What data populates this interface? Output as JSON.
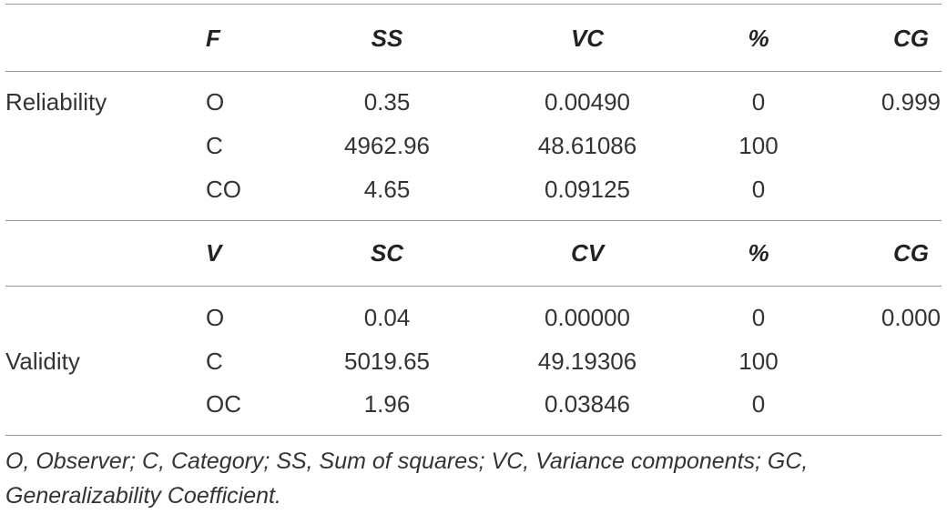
{
  "header1": [
    "F",
    "SS",
    "VC",
    "%",
    "CG"
  ],
  "reliability": {
    "label": "Reliability",
    "rows": [
      {
        "source": "O",
        "ss": "0.35",
        "vc": "0.00490",
        "pct": "0",
        "cg": "0.999"
      },
      {
        "source": "C",
        "ss": "4962.96",
        "vc": "48.61086",
        "pct": "100",
        "cg": ""
      },
      {
        "source": "CO",
        "ss": "4.65",
        "vc": "0.09125",
        "pct": "0",
        "cg": ""
      }
    ]
  },
  "header2": [
    "V",
    "SC",
    "CV",
    "%",
    "CG"
  ],
  "validity": {
    "label": "Validity",
    "rows": [
      {
        "source": "O",
        "ss": "0.04",
        "vc": "0.00000",
        "pct": "0",
        "cg": "0.000"
      },
      {
        "source": "C",
        "ss": "5019.65",
        "vc": "49.19306",
        "pct": "100",
        "cg": ""
      },
      {
        "source": "OC",
        "ss": "1.96",
        "vc": "0.03846",
        "pct": "0",
        "cg": ""
      }
    ]
  },
  "footnote": "O, Observer; C, Category; SS, Sum of squares; VC, Variance components; GC, Generalizability Coefficient."
}
